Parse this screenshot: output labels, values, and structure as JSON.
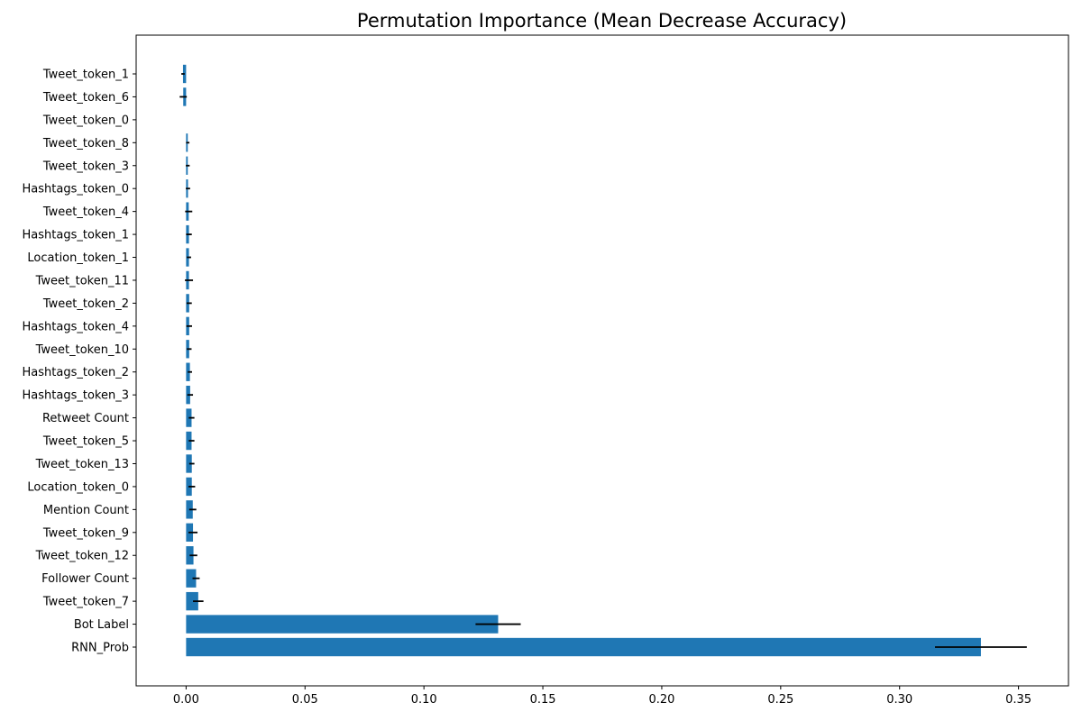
{
  "chart_data": {
    "type": "bar",
    "orientation": "horizontal",
    "title": "Permutation Importance (Mean Decrease Accuracy)",
    "xlabel": "",
    "ylabel": "",
    "xlim": [
      -0.021,
      0.371
    ],
    "xticks": [
      0.0,
      0.05,
      0.1,
      0.15,
      0.2,
      0.25,
      0.3,
      0.35
    ],
    "xtick_labels": [
      "0.00",
      "0.05",
      "0.10",
      "0.15",
      "0.20",
      "0.25",
      "0.30",
      "0.35"
    ],
    "grid": false,
    "bar_color": "#1f77b4",
    "error_color": "#000000",
    "categories": [
      "Tweet_token_1",
      "Tweet_token_6",
      "Tweet_token_0",
      "Tweet_token_8",
      "Tweet_token_3",
      "Hashtags_token_0",
      "Tweet_token_4",
      "Hashtags_token_1",
      "Location_token_1",
      "Tweet_token_11",
      "Tweet_token_2",
      "Hashtags_token_4",
      "Tweet_token_10",
      "Hashtags_token_2",
      "Hashtags_token_3",
      "Retweet Count",
      "Tweet_token_5",
      "Tweet_token_13",
      "Location_token_0",
      "Mention Count",
      "Tweet_token_9",
      "Tweet_token_12",
      "Follower Count",
      "Tweet_token_7",
      "Bot Label",
      "RNN_Prob"
    ],
    "values": [
      -0.0013,
      -0.0012,
      0.0,
      0.0007,
      0.0007,
      0.0008,
      0.0011,
      0.0012,
      0.0012,
      0.0012,
      0.0013,
      0.0013,
      0.0013,
      0.0016,
      0.0017,
      0.0023,
      0.0023,
      0.0024,
      0.0024,
      0.0028,
      0.0029,
      0.0031,
      0.0042,
      0.0051,
      0.1312,
      0.3342
    ],
    "errors": [
      0.0007,
      0.0015,
      0.0,
      0.0007,
      0.0008,
      0.0009,
      0.0015,
      0.0012,
      0.0009,
      0.0017,
      0.0011,
      0.0012,
      0.001,
      0.0009,
      0.0012,
      0.0012,
      0.0012,
      0.0011,
      0.0014,
      0.0015,
      0.0019,
      0.0016,
      0.0015,
      0.0022,
      0.0095,
      0.0193
    ]
  }
}
